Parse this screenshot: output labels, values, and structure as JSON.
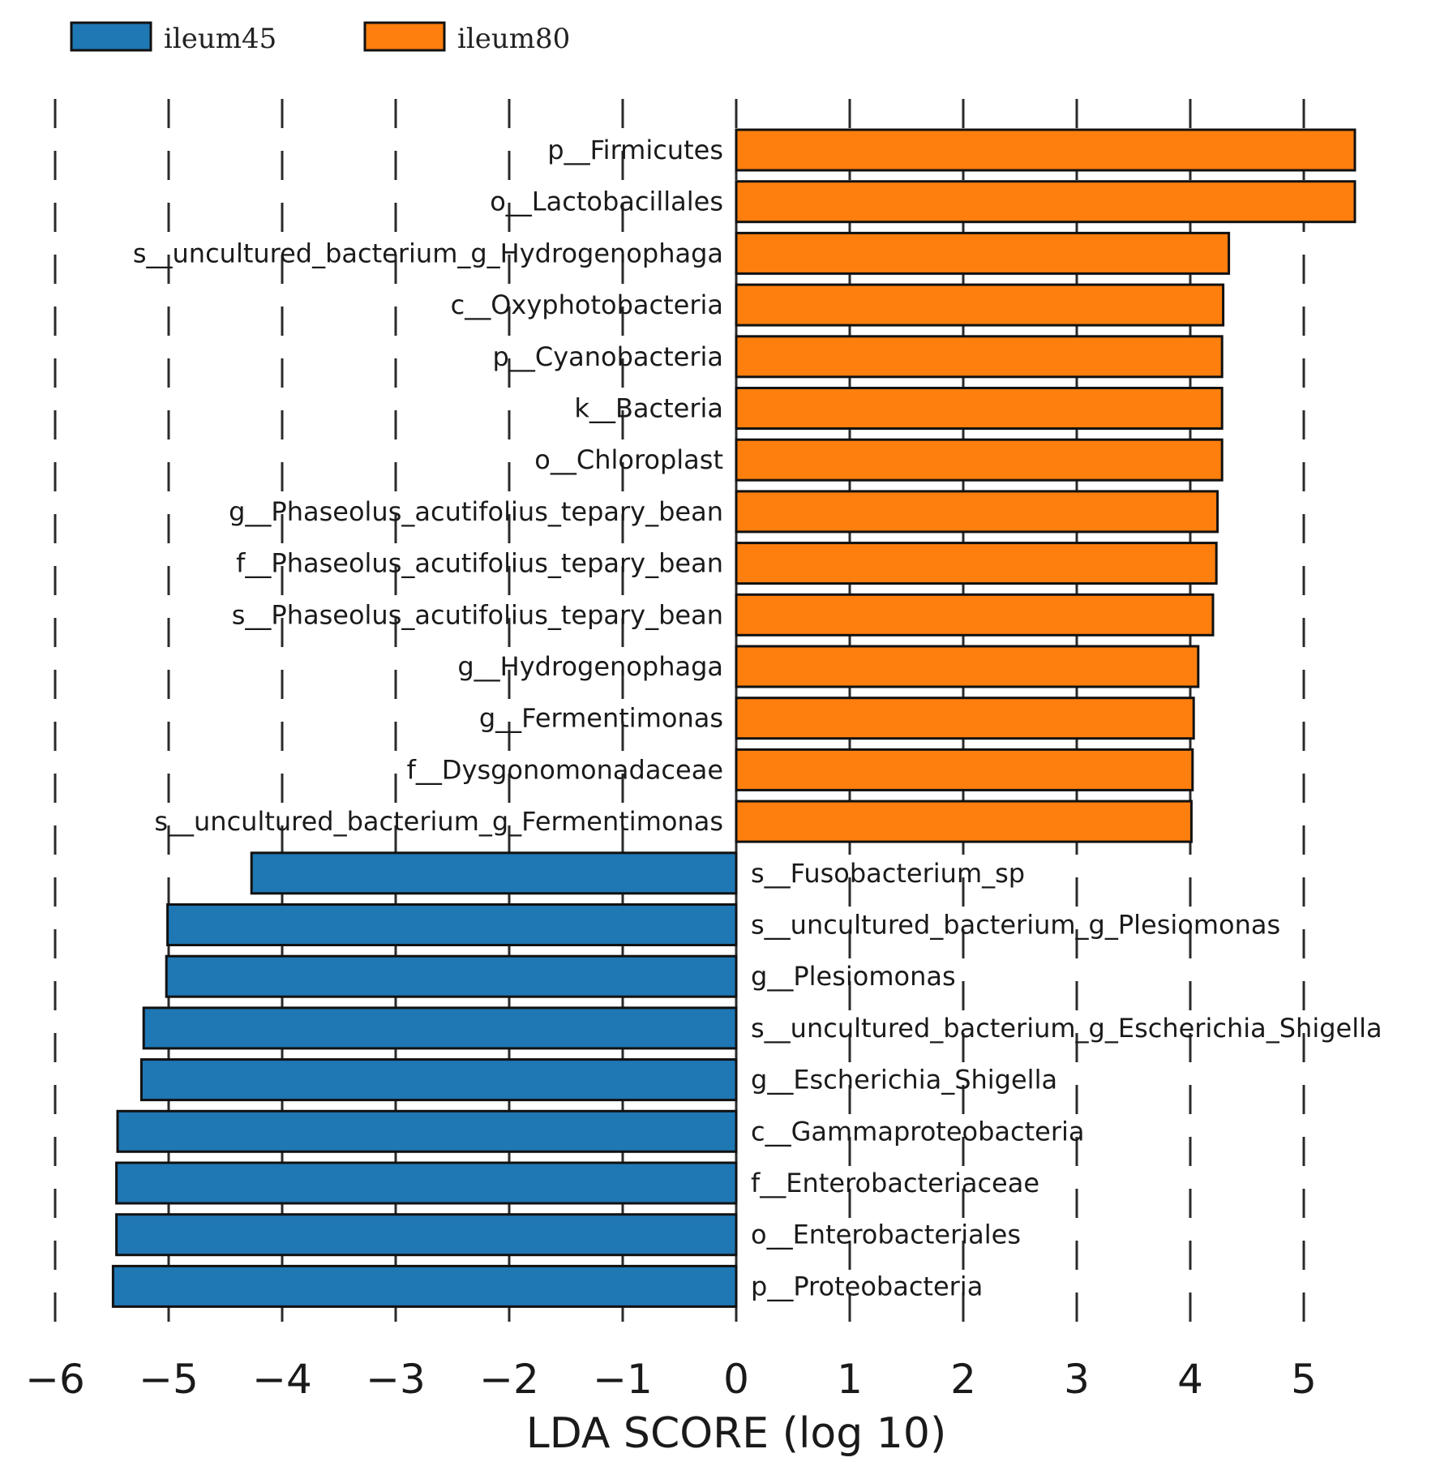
{
  "chart_data": {
    "type": "bar",
    "orientation": "horizontal",
    "xlabel": "LDA SCORE (log 10)",
    "ylabel": "",
    "xlim": [
      -6,
      5.8
    ],
    "xticks": [
      -6,
      -5,
      -4,
      -3,
      -2,
      -1,
      0,
      1,
      2,
      3,
      4,
      5
    ],
    "grid": "vertical dashed",
    "legend_position": "top-left",
    "colors": {
      "ileum45": "#1f77b4",
      "ileum80": "#ff7f0e",
      "edge": "#111111"
    },
    "legend": [
      {
        "name": "ileum45",
        "color": "#1f77b4"
      },
      {
        "name": "ileum80",
        "color": "#ff7f0e"
      }
    ],
    "bars": [
      {
        "label": "p__Firmicutes",
        "value": 5.45,
        "group": "ileum80"
      },
      {
        "label": "o__Lactobacillales",
        "value": 5.45,
        "group": "ileum80"
      },
      {
        "label": "s__uncultured_bacterium_g_Hydrogenophaga",
        "value": 4.34,
        "group": "ileum80"
      },
      {
        "label": "c__Oxyphotobacteria",
        "value": 4.29,
        "group": "ileum80"
      },
      {
        "label": "p__Cyanobacteria",
        "value": 4.28,
        "group": "ileum80"
      },
      {
        "label": "k__Bacteria",
        "value": 4.28,
        "group": "ileum80"
      },
      {
        "label": "o__Chloroplast",
        "value": 4.28,
        "group": "ileum80"
      },
      {
        "label": "g__Phaseolus_acutifolius_tepary_bean",
        "value": 4.24,
        "group": "ileum80"
      },
      {
        "label": "f__Phaseolus_acutifolius_tepary_bean",
        "value": 4.23,
        "group": "ileum80"
      },
      {
        "label": "s__Phaseolus_acutifolius_tepary_bean",
        "value": 4.2,
        "group": "ileum80"
      },
      {
        "label": "g__Hydrogenophaga",
        "value": 4.07,
        "group": "ileum80"
      },
      {
        "label": "g__Fermentimonas",
        "value": 4.03,
        "group": "ileum80"
      },
      {
        "label": "f__Dysgonomonadaceae",
        "value": 4.02,
        "group": "ileum80"
      },
      {
        "label": "s__uncultured_bacterium_g_Fermentimonas",
        "value": 4.01,
        "group": "ileum80"
      },
      {
        "label": "s__Fusobacterium_sp",
        "value": -4.27,
        "group": "ileum45"
      },
      {
        "label": "s__uncultured_bacterium_g_Plesiomonas",
        "value": -5.01,
        "group": "ileum45"
      },
      {
        "label": "g__Plesiomonas",
        "value": -5.02,
        "group": "ileum45"
      },
      {
        "label": "s__uncultured_bacterium_g_Escherichia_Shigella",
        "value": -5.22,
        "group": "ileum45"
      },
      {
        "label": "g__Escherichia_Shigella",
        "value": -5.24,
        "group": "ileum45"
      },
      {
        "label": "c__Gammaproteobacteria",
        "value": -5.45,
        "group": "ileum45"
      },
      {
        "label": "f__Enterobacteriaceae",
        "value": -5.46,
        "group": "ileum45"
      },
      {
        "label": "o__Enterobacteriales",
        "value": -5.46,
        "group": "ileum45"
      },
      {
        "label": "p__Proteobacteria",
        "value": -5.49,
        "group": "ileum45"
      }
    ]
  }
}
